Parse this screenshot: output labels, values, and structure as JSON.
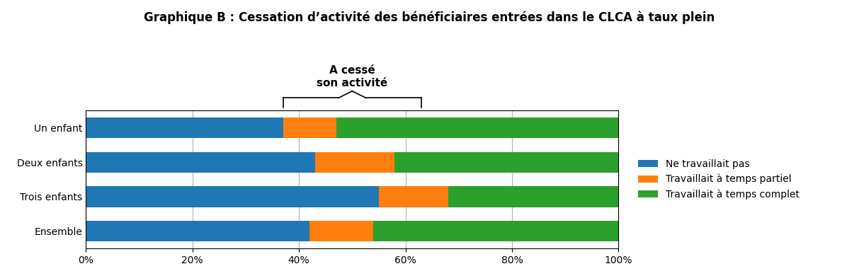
{
  "chart_data": {
    "type": "bar",
    "title": "Graphique B : Cessation d’activité des bénéficiaires entrées dans le CLCA à taux plein",
    "orientation": "horizontal",
    "stacked": true,
    "categories": [
      "Un enfant",
      "Deux enfants",
      "Trois enfants",
      "Ensemble"
    ],
    "series": [
      {
        "name": "Ne travaillait pas",
        "values": [
          37,
          43,
          55,
          42
        ]
      },
      {
        "name": "Travaillait à temps partiel",
        "values": [
          10,
          15,
          13,
          12
        ]
      },
      {
        "name": "Travaillait à temps complet",
        "values": [
          53,
          42,
          32,
          46
        ]
      }
    ],
    "xlim": [
      0,
      100
    ],
    "xticks": [
      {
        "value": 0,
        "label": "0%"
      },
      {
        "value": 20,
        "label": "20%"
      },
      {
        "value": 40,
        "label": "40%"
      },
      {
        "value": 60,
        "label": "60%"
      },
      {
        "value": 80,
        "label": "80%"
      },
      {
        "value": 100,
        "label": "100%"
      }
    ],
    "grid": true,
    "legend": "right",
    "annotations": [
      {
        "text": "A cessé\nson activité",
        "x_start": 37,
        "x_end": 63
      }
    ]
  }
}
